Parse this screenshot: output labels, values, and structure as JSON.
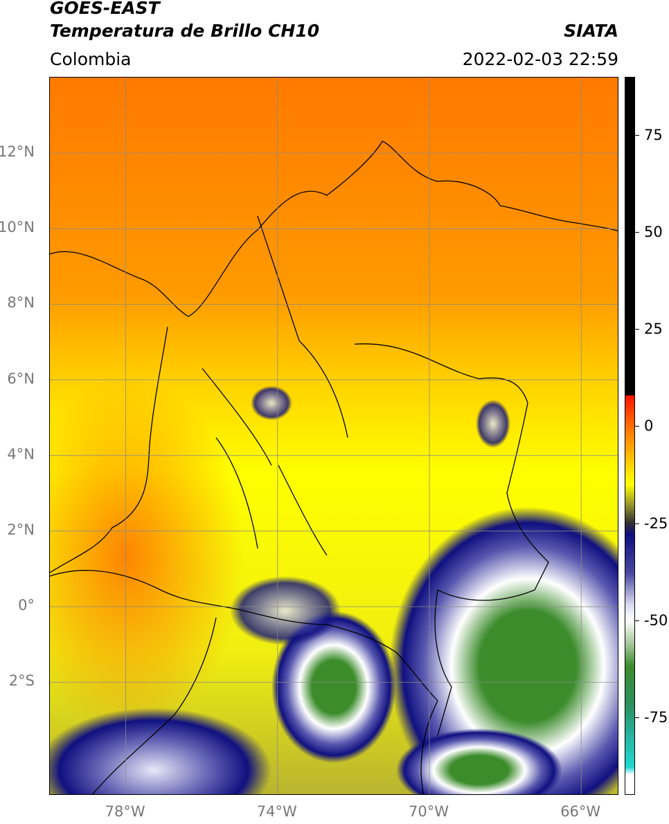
{
  "header": {
    "satellite": "GOES-EAST",
    "product": "Temperatura de Brillo CH10",
    "region": "Colombia",
    "agency": "SIATA",
    "timestamp": "2022-02-03 22:59"
  },
  "map": {
    "lat_range": [
      -5,
      14
    ],
    "lon_range": [
      -80,
      -65
    ],
    "lat_ticks": [
      {
        "value": 12,
        "label": "12°N"
      },
      {
        "value": 10,
        "label": "10°N"
      },
      {
        "value": 8,
        "label": "8°N"
      },
      {
        "value": 6,
        "label": "6°N"
      },
      {
        "value": 4,
        "label": "4°N"
      },
      {
        "value": 2,
        "label": "2°N"
      },
      {
        "value": 0,
        "label": "0°"
      },
      {
        "value": -2,
        "label": "2°S"
      }
    ],
    "lon_ticks": [
      {
        "value": -78,
        "label": "78°W"
      },
      {
        "value": -74,
        "label": "74°W"
      },
      {
        "value": -70,
        "label": "70°W"
      },
      {
        "value": -66,
        "label": "66°W"
      }
    ],
    "grid": true
  },
  "colorbar": {
    "range": [
      -95,
      90
    ],
    "labels": [
      {
        "value": 75,
        "label": "75"
      },
      {
        "value": 50,
        "label": "50"
      },
      {
        "value": 25,
        "label": "25"
      },
      {
        "value": 0,
        "label": "0"
      },
      {
        "value": -25,
        "label": "-25"
      },
      {
        "value": -50,
        "label": "-50"
      },
      {
        "value": -75,
        "label": "-75"
      }
    ],
    "stops": [
      {
        "value": 90,
        "color": "#000000"
      },
      {
        "value": 8,
        "color": "#000000"
      },
      {
        "value": 7.9,
        "color": "#ff1400"
      },
      {
        "value": 0,
        "color": "#ff6e00"
      },
      {
        "value": -10,
        "color": "#ffd200"
      },
      {
        "value": -15,
        "color": "#ffff00"
      },
      {
        "value": -20,
        "color": "#9a9a2c"
      },
      {
        "value": -25,
        "color": "#303030"
      },
      {
        "value": -28,
        "color": "#0f0f80"
      },
      {
        "value": -38,
        "color": "#4a4aa0"
      },
      {
        "value": -46,
        "color": "#d8d8f0"
      },
      {
        "value": -50,
        "color": "#ffffff"
      },
      {
        "value": -56,
        "color": "#a8c8a0"
      },
      {
        "value": -62,
        "color": "#3c8c2c"
      },
      {
        "value": -72,
        "color": "#2a9060"
      },
      {
        "value": -80,
        "color": "#28b4a0"
      },
      {
        "value": -88,
        "color": "#20d8d0"
      },
      {
        "value": -90,
        "color": "#ffffff"
      },
      {
        "value": -95,
        "color": "#ffffff"
      }
    ]
  }
}
